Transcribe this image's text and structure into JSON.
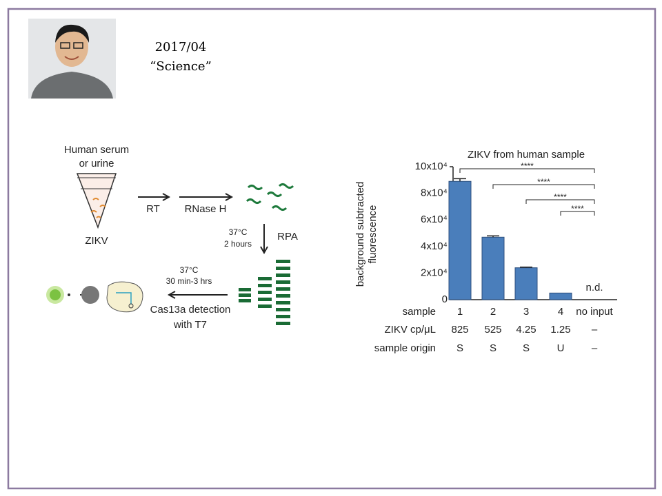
{
  "header": {
    "date": "2017/04",
    "journal": "“Science”"
  },
  "diagram": {
    "sample": [
      "Human serum",
      "or urine"
    ],
    "virus": "ZIKV",
    "step_rt": "RT",
    "step_rnase": "RNase H",
    "rpa_conditions": [
      "37°C",
      "2 hours"
    ],
    "step_rpa": "RPA",
    "detection_conditions": [
      "37°C",
      "30 min-3 hrs"
    ],
    "detection": [
      "Cas13a detection",
      "with T7"
    ]
  },
  "chart_data": {
    "type": "bar",
    "title": "ZIKV from human sample",
    "y_label": [
      "background subtracted",
      "fluorescence"
    ],
    "x_label": "sample",
    "categories": [
      "1",
      "2",
      "3",
      "4",
      "no input"
    ],
    "values": [
      89000,
      47000,
      24000,
      5000,
      null
    ],
    "errors": [
      2000,
      1000,
      500,
      0,
      null
    ],
    "value_labels": [
      null,
      null,
      null,
      null,
      "n.d."
    ],
    "color": "#4a7ebb",
    "ylim": [
      0,
      100000
    ],
    "yticks": [
      0,
      {
        "value": 20000,
        "label": "2x10⁴"
      },
      {
        "value": 40000,
        "label": "4x10⁴"
      },
      {
        "value": 60000,
        "label": "6x10⁴"
      },
      {
        "value": 80000,
        "label": "8x10⁴"
      },
      {
        "value": 100000,
        "label": "10x10⁴"
      }
    ],
    "significance": [
      "****",
      "****",
      "****",
      "****"
    ],
    "rows": [
      {
        "label": "ZIKV cp/μL",
        "values": [
          "825",
          "525",
          "4.25",
          "1.25",
          "–"
        ]
      },
      {
        "label": "sample origin",
        "values": [
          "S",
          "S",
          "S",
          "U",
          "–"
        ]
      }
    ]
  }
}
